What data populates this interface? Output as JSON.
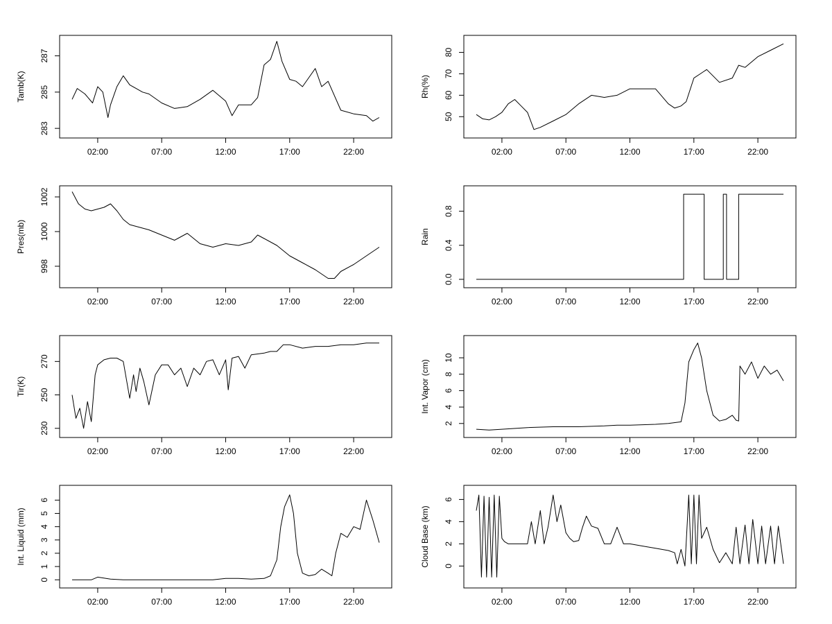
{
  "figure": {
    "background": "#ffffff",
    "line_color": "#000000"
  },
  "chart_data": [
    {
      "type": "line",
      "ylabel": "Tamb(K)",
      "xticks": [
        "02:00",
        "07:00",
        "12:00",
        "17:00",
        "22:00"
      ],
      "xtick_hours": [
        2,
        7,
        12,
        17,
        22
      ],
      "xlim": [
        0,
        24
      ],
      "yticks": [
        "283",
        "285",
        "287"
      ],
      "ytick_values": [
        283,
        285,
        287
      ],
      "ylim": [
        282.7,
        287.9
      ],
      "x": [
        0,
        0.4,
        1,
        1.6,
        2,
        2.4,
        2.8,
        3,
        3.5,
        4,
        4.5,
        5,
        5.5,
        6,
        7,
        8,
        9,
        10,
        11,
        12,
        12.5,
        13,
        14,
        14.5,
        15,
        15.5,
        16,
        16.4,
        17,
        17.5,
        18,
        18.5,
        19,
        19.5,
        20,
        21,
        22,
        23,
        23.5,
        24
      ],
      "y": [
        284.6,
        285.2,
        284.9,
        284.4,
        285.3,
        285.0,
        283.6,
        284.3,
        285.3,
        285.9,
        285.4,
        285.2,
        285.0,
        284.9,
        284.4,
        284.1,
        284.2,
        284.6,
        285.1,
        284.5,
        283.7,
        284.3,
        284.3,
        284.7,
        286.5,
        286.8,
        287.8,
        286.7,
        285.7,
        285.6,
        285.3,
        285.8,
        286.3,
        285.3,
        285.6,
        284.0,
        283.8,
        283.7,
        283.4,
        283.6
      ]
    },
    {
      "type": "line",
      "ylabel": "Rh(%)",
      "xticks": [
        "02:00",
        "07:00",
        "12:00",
        "17:00",
        "22:00"
      ],
      "xtick_hours": [
        2,
        7,
        12,
        17,
        22
      ],
      "xlim": [
        0,
        24
      ],
      "yticks": [
        "50",
        "60",
        "70",
        "80"
      ],
      "ytick_values": [
        50,
        60,
        70,
        80
      ],
      "ylim": [
        42,
        86
      ],
      "x": [
        0,
        0.5,
        1,
        1.5,
        2,
        2.5,
        3,
        3.5,
        4,
        4.5,
        5,
        6,
        7,
        8,
        9,
        10,
        11,
        12,
        13,
        14,
        15,
        15.5,
        16,
        16.4,
        17,
        17.5,
        18,
        19,
        20,
        20.5,
        21,
        22,
        23,
        24
      ],
      "y": [
        51,
        49,
        48.5,
        50,
        52,
        56,
        58,
        55,
        52,
        44,
        45,
        48,
        51,
        56,
        60,
        59,
        60,
        63,
        63,
        63,
        56,
        54,
        55,
        57,
        68,
        70,
        72,
        66,
        68,
        74,
        73,
        78,
        81,
        84
      ]
    },
    {
      "type": "line",
      "ylabel": "Pres(mb)",
      "xticks": [
        "02:00",
        "07:00",
        "12:00",
        "17:00",
        "22:00"
      ],
      "xtick_hours": [
        2,
        7,
        12,
        17,
        22
      ],
      "xlim": [
        0,
        24
      ],
      "yticks": [
        "998",
        "1000",
        "1002"
      ],
      "ytick_values": [
        998,
        1000,
        1002
      ],
      "ylim": [
        997.0,
        1002.4
      ],
      "x": [
        0,
        0.5,
        1,
        1.5,
        2,
        2.5,
        3,
        3.5,
        4,
        4.5,
        5,
        6,
        7,
        8,
        9,
        10,
        11,
        12,
        13,
        14,
        14.5,
        15,
        16,
        17,
        18,
        19,
        20,
        20.5,
        21,
        22,
        23,
        24
      ],
      "y": [
        1002.3,
        1001.6,
        1001.3,
        1001.2,
        1001.3,
        1001.4,
        1001.6,
        1001.2,
        1000.7,
        1000.4,
        1000.3,
        1000.1,
        999.8,
        999.5,
        999.9,
        999.3,
        999.1,
        999.3,
        999.2,
        999.4,
        999.8,
        999.6,
        999.2,
        998.6,
        998.2,
        997.8,
        997.3,
        997.3,
        997.7,
        998.1,
        998.6,
        999.1
      ]
    },
    {
      "type": "line",
      "ylabel": "Rain",
      "xticks": [
        "02:00",
        "07:00",
        "12:00",
        "17:00",
        "22:00"
      ],
      "xtick_hours": [
        2,
        7,
        12,
        17,
        22
      ],
      "xlim": [
        0,
        24
      ],
      "yticks": [
        "0.0",
        "0.4",
        "0.8"
      ],
      "ytick_values": [
        0,
        0.4,
        0.8
      ],
      "ylim": [
        -0.05,
        1.05
      ],
      "x": [
        0,
        16.2,
        16.2,
        17.8,
        17.8,
        19.3,
        19.3,
        19.55,
        19.55,
        20.5,
        20.5,
        24
      ],
      "y": [
        0,
        0,
        1,
        1,
        0,
        0,
        1,
        1,
        0,
        0,
        1,
        1
      ]
    },
    {
      "type": "line",
      "ylabel": "Tir(K)",
      "xticks": [
        "02:00",
        "07:00",
        "12:00",
        "17:00",
        "22:00"
      ],
      "xtick_hours": [
        2,
        7,
        12,
        17,
        22
      ],
      "xlim": [
        0,
        24
      ],
      "yticks": [
        "230",
        "250",
        "270"
      ],
      "ytick_values": [
        230,
        250,
        270
      ],
      "ylim": [
        227,
        283
      ],
      "x": [
        0,
        0.3,
        0.6,
        0.9,
        1.2,
        1.5,
        1.8,
        2,
        2.5,
        3,
        3.5,
        4,
        4.5,
        4.8,
        5,
        5.3,
        5.6,
        6,
        6.5,
        7,
        7.5,
        8,
        8.5,
        9,
        9.5,
        10,
        10.5,
        11,
        11.5,
        12,
        12.2,
        12.5,
        13,
        13.5,
        14,
        15,
        15.5,
        16,
        16.5,
        17,
        18,
        19,
        20,
        21,
        22,
        23,
        24
      ],
      "y": [
        250,
        236,
        242,
        230,
        246,
        234,
        262,
        268,
        271,
        272,
        272,
        270,
        248,
        262,
        252,
        266,
        258,
        244,
        262,
        268,
        268,
        262,
        266,
        255,
        266,
        262,
        270,
        271,
        262,
        271,
        253,
        272,
        273,
        266,
        274,
        275,
        276,
        276,
        280,
        280,
        278,
        279,
        279,
        280,
        280,
        281,
        281
      ]
    },
    {
      "type": "line",
      "ylabel": "Int. Vapor (cm)",
      "xticks": [
        "02:00",
        "07:00",
        "12:00",
        "17:00",
        "22:00"
      ],
      "xtick_hours": [
        2,
        7,
        12,
        17,
        22
      ],
      "xlim": [
        0,
        24
      ],
      "yticks": [
        "2",
        "4",
        "6",
        "8",
        "10"
      ],
      "ytick_values": [
        2,
        4,
        6,
        8,
        10
      ],
      "ylim": [
        0.8,
        12.2
      ],
      "x": [
        0,
        1,
        2,
        4,
        6,
        8,
        10,
        11,
        12,
        14,
        15,
        16,
        16.3,
        16.6,
        17,
        17.3,
        17.6,
        18,
        18.5,
        19,
        19.5,
        20,
        20.3,
        20.5,
        20.6,
        21,
        21.5,
        22,
        22.5,
        23,
        23.5,
        24
      ],
      "y": [
        1.3,
        1.2,
        1.3,
        1.5,
        1.6,
        1.6,
        1.7,
        1.8,
        1.8,
        1.9,
        2.0,
        2.2,
        4.5,
        9.5,
        11,
        11.8,
        10,
        6,
        3,
        2.3,
        2.5,
        3.0,
        2.4,
        2.3,
        9,
        8,
        9.5,
        7.5,
        9,
        8,
        8.5,
        7.2
      ]
    },
    {
      "type": "line",
      "ylabel": "Int. Liquid (mm)",
      "xticks": [
        "02:00",
        "07:00",
        "12:00",
        "17:00",
        "22:00"
      ],
      "xtick_hours": [
        2,
        7,
        12,
        17,
        22
      ],
      "xlim": [
        0,
        24
      ],
      "yticks": [
        "0",
        "1",
        "2",
        "3",
        "4",
        "5",
        "6"
      ],
      "ytick_values": [
        0,
        1,
        2,
        3,
        4,
        5,
        6
      ],
      "ylim": [
        -0.3,
        6.8
      ],
      "x": [
        0,
        1.5,
        2,
        3,
        4,
        8,
        11,
        11.5,
        12,
        13,
        14,
        15,
        15.5,
        16,
        16.3,
        16.6,
        17,
        17.3,
        17.6,
        18,
        18.5,
        19,
        19.5,
        20,
        20.3,
        20.6,
        21,
        21.5,
        22,
        22.5,
        23,
        23.5,
        24
      ],
      "y": [
        0,
        0,
        0.2,
        0.05,
        0,
        0,
        0,
        0.05,
        0.1,
        0.1,
        0.05,
        0.1,
        0.3,
        1.5,
        4,
        5.5,
        6.4,
        5,
        2,
        0.5,
        0.3,
        0.4,
        0.8,
        0.5,
        0.3,
        2,
        3.5,
        3.2,
        4,
        3.8,
        6,
        4.5,
        2.8
      ]
    },
    {
      "type": "line",
      "ylabel": "Cloud Base (km)",
      "xticks": [
        "02:00",
        "07:00",
        "12:00",
        "17:00",
        "22:00"
      ],
      "xtick_hours": [
        2,
        7,
        12,
        17,
        22
      ],
      "xlim": [
        0,
        24
      ],
      "yticks": [
        "0",
        "2",
        "4",
        "6"
      ],
      "ytick_values": [
        0,
        2,
        4,
        6
      ],
      "ylim": [
        -1.6,
        6.9
      ],
      "x": [
        0,
        0.2,
        0.4,
        0.6,
        0.8,
        1.0,
        1.2,
        1.4,
        1.6,
        1.8,
        2.0,
        2.2,
        2.5,
        3,
        3.5,
        4,
        4.3,
        4.6,
        5,
        5.3,
        5.6,
        6,
        6.3,
        6.6,
        7,
        7.3,
        7.6,
        8,
        8.3,
        8.6,
        9,
        9.5,
        10,
        10.5,
        11,
        11.5,
        12,
        13,
        14,
        15,
        15.5,
        15.7,
        16,
        16.3,
        16.6,
        16.8,
        17,
        17.2,
        17.4,
        17.6,
        18,
        18.5,
        19,
        19.5,
        20,
        20.3,
        20.6,
        21,
        21.3,
        21.6,
        22,
        22.3,
        22.6,
        23,
        23.3,
        23.6,
        24
      ],
      "y": [
        5,
        6.4,
        -1,
        6.3,
        -1,
        6.2,
        -1,
        6.4,
        -1,
        6.3,
        2.5,
        2.2,
        2,
        2,
        2,
        2,
        4,
        2,
        5,
        2,
        3.5,
        6.4,
        4,
        5.5,
        3,
        2.5,
        2.2,
        2.3,
        3.5,
        4.5,
        3.6,
        3.4,
        2.0,
        2.0,
        3.5,
        2.0,
        2.0,
        1.8,
        1.6,
        1.4,
        1.2,
        0.2,
        1.5,
        0,
        6.4,
        0.2,
        6.4,
        0.2,
        6.4,
        2.5,
        3.5,
        1.5,
        0.3,
        1.2,
        0.2,
        3.5,
        0.2,
        3.7,
        0.2,
        4.2,
        0.2,
        3.6,
        0.2,
        3.6,
        0.2,
        3.6,
        0.2
      ]
    }
  ]
}
